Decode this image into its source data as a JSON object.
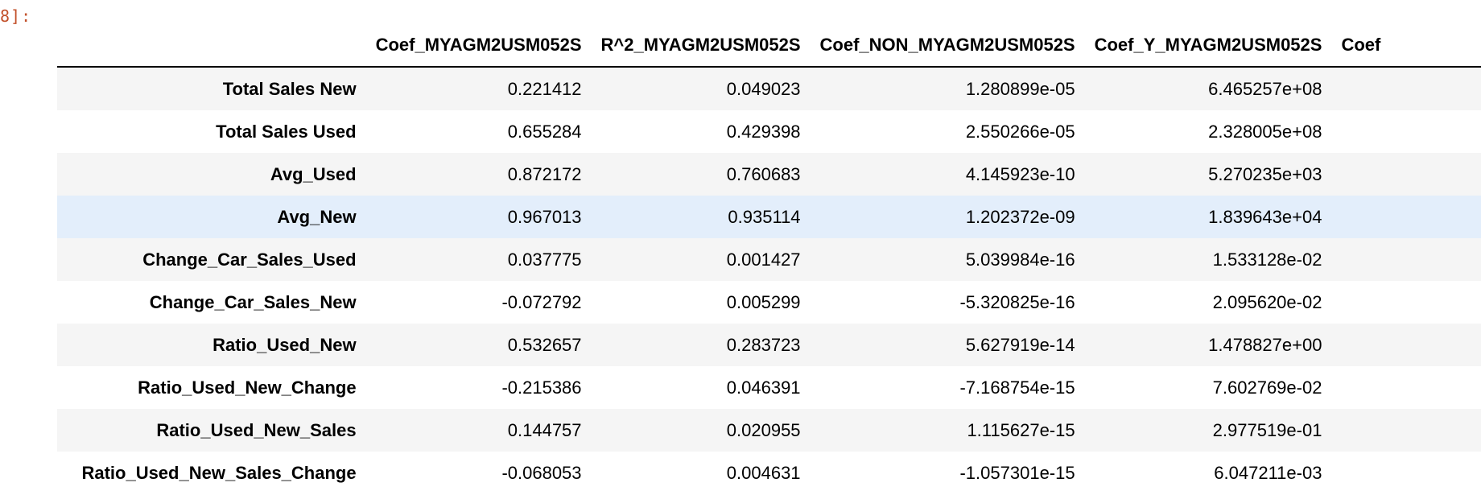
{
  "cell": {
    "prompt": "8]:"
  },
  "table": {
    "columns": [
      "Coef_MYAGM2USM052S",
      "R^2_MYAGM2USM052S",
      "Coef_NON_MYAGM2USM052S",
      "Coef_Y_MYAGM2USM052S",
      "Coef"
    ],
    "rows": [
      {
        "index": "Total Sales New",
        "values": [
          "0.221412",
          "0.049023",
          "1.280899e-05",
          "6.465257e+08",
          ""
        ]
      },
      {
        "index": "Total Sales Used",
        "values": [
          "0.655284",
          "0.429398",
          "2.550266e-05",
          "2.328005e+08",
          ""
        ]
      },
      {
        "index": "Avg_Used",
        "values": [
          "0.872172",
          "0.760683",
          "4.145923e-10",
          "5.270235e+03",
          ""
        ]
      },
      {
        "index": "Avg_New",
        "values": [
          "0.967013",
          "0.935114",
          "1.202372e-09",
          "1.839643e+04",
          ""
        ]
      },
      {
        "index": "Change_Car_Sales_Used",
        "values": [
          "0.037775",
          "0.001427",
          "5.039984e-16",
          "1.533128e-02",
          ""
        ]
      },
      {
        "index": "Change_Car_Sales_New",
        "values": [
          "-0.072792",
          "0.005299",
          "-5.320825e-16",
          "2.095620e-02",
          ""
        ]
      },
      {
        "index": "Ratio_Used_New",
        "values": [
          "0.532657",
          "0.283723",
          "5.627919e-14",
          "1.478827e+00",
          ""
        ]
      },
      {
        "index": "Ratio_Used_New_Change",
        "values": [
          "-0.215386",
          "0.046391",
          "-7.168754e-15",
          "7.602769e-02",
          ""
        ]
      },
      {
        "index": "Ratio_Used_New_Sales",
        "values": [
          "0.144757",
          "0.020955",
          "1.115627e-15",
          "2.977519e-01",
          ""
        ]
      },
      {
        "index": "Ratio_Used_New_Sales_Change",
        "values": [
          "-0.068053",
          "0.004631",
          "-1.057301e-15",
          "6.047211e-03",
          ""
        ]
      }
    ]
  },
  "colors": {
    "prompt": "#c2502a",
    "row_stripe": "#f5f5f5",
    "row_hover": "#e3eefb"
  }
}
